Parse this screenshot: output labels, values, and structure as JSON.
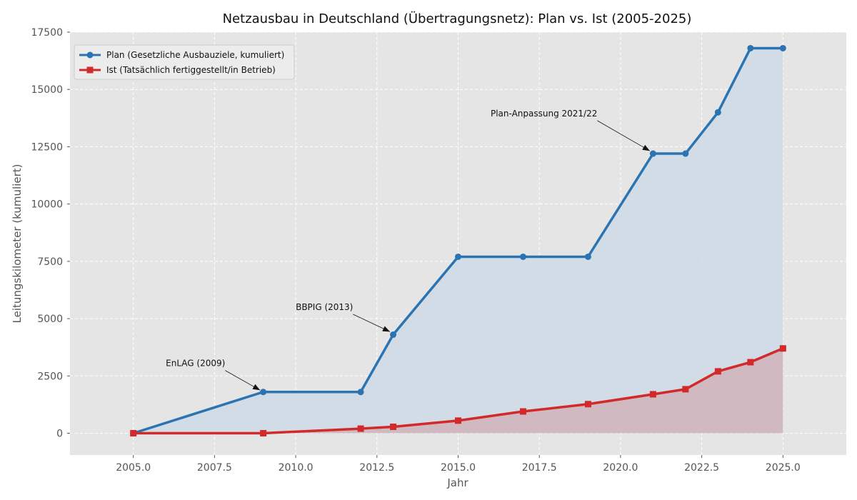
{
  "chart_data": {
    "type": "line",
    "title": "Netzausbau in Deutschland (Übertragungsnetz): Plan vs. Ist (2005-2025)",
    "xlabel": "Jahr",
    "ylabel": "Leitungskilometer (kumuliert)",
    "xlim": [
      2003.05,
      2026.95
    ],
    "ylim": [
      -950,
      17500
    ],
    "xticks": [
      2005,
      2007.5,
      2010,
      2012.5,
      2015,
      2017.5,
      2020,
      2022.5,
      2025
    ],
    "xtick_labels": [
      "2005.0",
      "2007.5",
      "2010.0",
      "2012.5",
      "2015.0",
      "2017.5",
      "2020.0",
      "2022.5",
      "2025.0"
    ],
    "yticks": [
      0,
      2500,
      5000,
      7500,
      10000,
      12500,
      15000,
      17500
    ],
    "ytick_labels": [
      "0",
      "2500",
      "5000",
      "7500",
      "10000",
      "12500",
      "15000",
      "17500"
    ],
    "grid": true,
    "legend_position": "top-left",
    "series": [
      {
        "name": "Plan (Gesetzliche Ausbauziele, kumuliert)",
        "color": "#2a74b3",
        "fill": "#cfdbe6",
        "marker": "circle",
        "x": [
          2005,
          2009,
          2012,
          2013,
          2015,
          2017,
          2019,
          2021,
          2022,
          2023,
          2024,
          2025
        ],
        "y": [
          0,
          1800,
          1800,
          4300,
          7700,
          7700,
          7700,
          12200,
          12200,
          14000,
          16800,
          16800
        ]
      },
      {
        "name": "Ist (Tatsächlich fertiggestellt/in Betrieb)",
        "color": "#d22a2a",
        "fill": "#d0b3b8",
        "marker": "square",
        "x": [
          2005,
          2009,
          2012,
          2013,
          2015,
          2017,
          2019,
          2021,
          2022,
          2023,
          2024,
          2025
        ],
        "y": [
          0,
          0,
          200,
          280,
          550,
          950,
          1270,
          1700,
          1920,
          2700,
          3100,
          3700
        ]
      }
    ],
    "annotations": [
      {
        "text": "EnLAG (2009)",
        "text_x": 2006,
        "text_y": 3050,
        "point_x": 2008.9,
        "point_y": 1880
      },
      {
        "text": "BBPIG (2013)",
        "text_x": 2010,
        "text_y": 5500,
        "point_x": 2012.9,
        "point_y": 4430
      },
      {
        "text": "Plan-Anpassung 2021/22",
        "text_x": 2016,
        "text_y": 13950,
        "point_x": 2020.9,
        "point_y": 12320
      }
    ]
  }
}
